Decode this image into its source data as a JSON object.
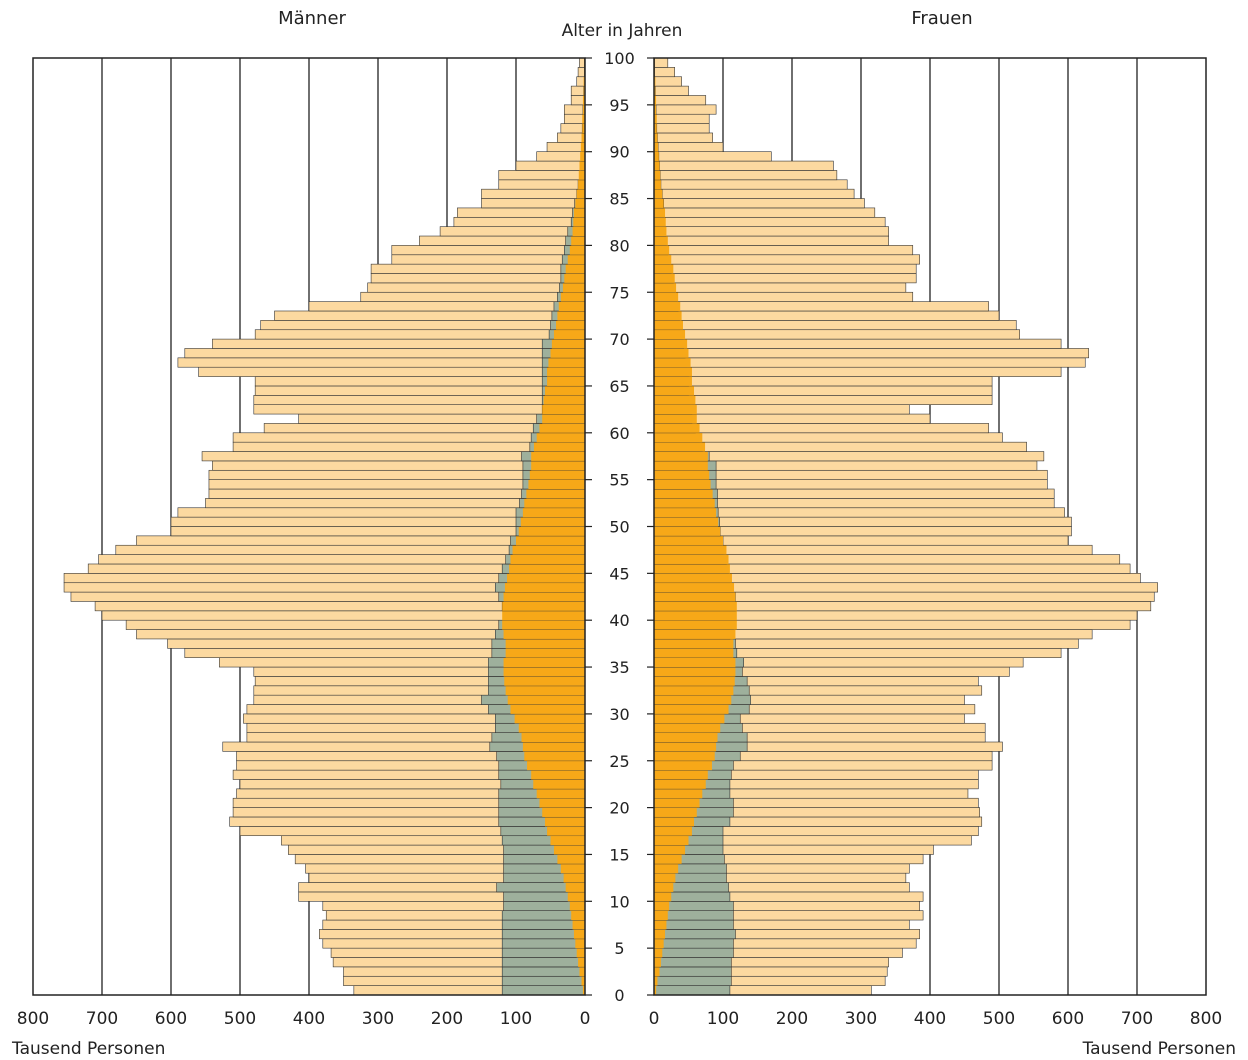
{
  "chart_data": {
    "type": "bar",
    "subtype": "population-pyramid",
    "labels": {
      "left_panel": "Männer",
      "right_panel": "Frauen",
      "center_axis": "Alter in Jahren",
      "x_unit_left": "Tausend Personen",
      "x_unit_right": "Tausend Personen"
    },
    "age_ticks": [
      "100",
      "95",
      "90",
      "85",
      "80",
      "75",
      "70",
      "65",
      "60",
      "55",
      "50",
      "45",
      "40",
      "35",
      "30",
      "25",
      "20",
      "15",
      "10",
      "5",
      "0"
    ],
    "x_ticks_left": [
      "800",
      "700",
      "600",
      "500",
      "400",
      "300",
      "200",
      "100",
      "0"
    ],
    "x_ticks_right": [
      "0",
      "100",
      "200",
      "300",
      "400",
      "500",
      "600",
      "700",
      "800"
    ],
    "xlim": [
      0,
      800
    ],
    "ages": [
      0,
      1,
      2,
      3,
      4,
      5,
      6,
      7,
      8,
      9,
      10,
      11,
      12,
      13,
      14,
      15,
      16,
      17,
      18,
      19,
      20,
      21,
      22,
      23,
      24,
      25,
      26,
      27,
      28,
      29,
      30,
      31,
      32,
      33,
      34,
      35,
      36,
      37,
      38,
      39,
      40,
      41,
      42,
      43,
      44,
      45,
      46,
      47,
      48,
      49,
      50,
      51,
      52,
      53,
      54,
      55,
      56,
      57,
      58,
      59,
      60,
      61,
      62,
      63,
      64,
      65,
      66,
      67,
      68,
      69,
      70,
      71,
      72,
      73,
      74,
      75,
      76,
      77,
      78,
      79,
      80,
      81,
      82,
      83,
      84,
      85,
      86,
      87,
      88,
      89,
      90,
      91,
      92,
      93,
      94,
      95,
      96,
      97,
      98,
      99
    ],
    "series_colors": {
      "total": "#fcd9a0",
      "foreign": "#9eb09c",
      "married": "#f7a818",
      "outline": "#333333",
      "grid": "#222222"
    },
    "men": {
      "total": [
        335,
        350,
        350,
        365,
        368,
        380,
        385,
        380,
        375,
        380,
        415,
        415,
        400,
        405,
        420,
        430,
        440,
        500,
        515,
        510,
        510,
        505,
        500,
        510,
        505,
        505,
        525,
        490,
        490,
        495,
        490,
        480,
        480,
        478,
        480,
        530,
        580,
        605,
        650,
        665,
        700,
        710,
        745,
        755,
        755,
        720,
        705,
        680,
        650,
        600,
        600,
        590,
        550,
        545,
        545,
        545,
        540,
        555,
        510,
        510,
        465,
        415,
        480,
        480,
        478,
        478,
        560,
        590,
        580,
        540,
        478,
        470,
        450,
        400,
        325,
        315,
        310,
        310,
        280,
        280,
        240,
        210,
        190,
        185,
        150,
        150,
        125,
        125,
        100,
        70,
        55,
        40,
        35,
        30,
        30,
        20,
        20,
        12,
        10,
        8
      ],
      "foreign": [
        120,
        120,
        120,
        120,
        120,
        120,
        120,
        120,
        120,
        118,
        118,
        128,
        118,
        118,
        118,
        118,
        120,
        122,
        125,
        125,
        125,
        125,
        122,
        125,
        125,
        128,
        138,
        135,
        130,
        130,
        140,
        150,
        140,
        140,
        140,
        140,
        135,
        135,
        130,
        125,
        115,
        120,
        125,
        130,
        125,
        120,
        115,
        110,
        108,
        100,
        100,
        100,
        95,
        92,
        90,
        90,
        90,
        92,
        80,
        78,
        75,
        70,
        62,
        62,
        62,
        62,
        62,
        62,
        62,
        62,
        52,
        50,
        48,
        45,
        40,
        37,
        35,
        35,
        33,
        30,
        28,
        25,
        20,
        18,
        15,
        12,
        10,
        8,
        6,
        5,
        5,
        4,
        4,
        3,
        3,
        2,
        2,
        1,
        1,
        1
      ],
      "married": [
        3,
        5,
        8,
        10,
        12,
        14,
        16,
        18,
        20,
        22,
        25,
        28,
        31,
        35,
        40,
        45,
        50,
        55,
        58,
        62,
        66,
        70,
        75,
        78,
        84,
        88,
        90,
        92,
        96,
        102,
        108,
        112,
        115,
        117,
        118,
        118,
        115,
        115,
        118,
        120,
        120,
        120,
        118,
        116,
        113,
        110,
        108,
        105,
        100,
        96,
        93,
        90,
        88,
        85,
        82,
        80,
        78,
        78,
        74,
        70,
        66,
        62,
        62,
        60,
        58,
        55,
        55,
        53,
        50,
        48,
        45,
        42,
        40,
        38,
        35,
        32,
        30,
        28,
        25,
        22,
        20,
        18,
        17,
        16,
        14,
        12,
        10,
        9,
        8,
        7,
        6,
        5,
        4,
        4,
        3,
        3,
        2,
        2,
        1,
        1
      ]
    },
    "women": {
      "total": [
        315,
        335,
        338,
        340,
        360,
        380,
        385,
        370,
        390,
        385,
        390,
        370,
        365,
        370,
        390,
        405,
        460,
        470,
        475,
        472,
        470,
        455,
        470,
        470,
        490,
        490,
        505,
        480,
        480,
        450,
        465,
        450,
        475,
        470,
        515,
        535,
        590,
        615,
        635,
        690,
        700,
        720,
        725,
        730,
        705,
        690,
        675,
        635,
        600,
        605,
        605,
        595,
        580,
        580,
        570,
        570,
        555,
        565,
        540,
        505,
        485,
        400,
        370,
        490,
        490,
        490,
        590,
        625,
        630,
        590,
        530,
        525,
        500,
        485,
        375,
        365,
        380,
        380,
        385,
        375,
        340,
        340,
        335,
        320,
        305,
        290,
        280,
        265,
        260,
        170,
        100,
        85,
        80,
        80,
        90,
        75,
        50,
        40,
        30,
        20
      ],
      "foreign": [
        110,
        112,
        112,
        112,
        115,
        115,
        118,
        115,
        115,
        115,
        110,
        108,
        105,
        105,
        102,
        100,
        100,
        100,
        110,
        115,
        115,
        110,
        110,
        112,
        115,
        125,
        135,
        135,
        128,
        125,
        138,
        140,
        138,
        135,
        128,
        130,
        120,
        118,
        110,
        115,
        115,
        118,
        118,
        115,
        110,
        108,
        105,
        100,
        100,
        96,
        95,
        93,
        92,
        92,
        90,
        90,
        90,
        80,
        70,
        65,
        60,
        55,
        55,
        50,
        50,
        50,
        50,
        48,
        45,
        43,
        42,
        38,
        37,
        35,
        33,
        30,
        28,
        25,
        22,
        20,
        18,
        17,
        16,
        15,
        14,
        12,
        10,
        9,
        8,
        7,
        6,
        5,
        4,
        3,
        3,
        2,
        2,
        1,
        1,
        1
      ]
    }
  }
}
